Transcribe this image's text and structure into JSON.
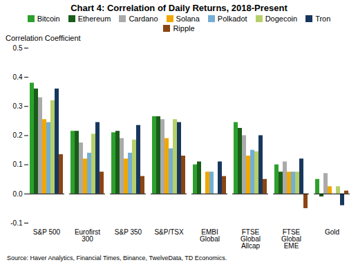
{
  "chart_data": {
    "type": "bar",
    "title": "Chart 4: Correlation of Daily Returns, 2018-Present",
    "ylabel": "Correlation Coefficient",
    "annotations": [
      "Source: Haver Analytics, Financial Times, Binance, TwelveData, TD Economics."
    ],
    "categories": [
      "S&P 500",
      "Eurofirst\n300",
      "S&P 350",
      "S&P/TSX",
      "EMBI\nGlobal",
      "FTSE\nGlobal\nAllcap",
      "FTSE\nGlobal\nEME",
      "Gold"
    ],
    "series": [
      {
        "name": "Bitcoin",
        "color": "#2ca02c",
        "values": [
          0.38,
          0.215,
          0.21,
          0.265,
          0.1,
          0.245,
          0.1,
          0.05
        ]
      },
      {
        "name": "Ethereum",
        "color": "#1a5c1a",
        "values": [
          0.36,
          0.215,
          0.215,
          0.265,
          0.11,
          0.225,
          0.075,
          -0.01
        ]
      },
      {
        "name": "Cardano",
        "color": "#aaaaaa",
        "values": [
          0.33,
          0.175,
          0.19,
          0.255,
          0.0,
          0.2,
          0.11,
          0.07
        ]
      },
      {
        "name": "Solana",
        "color": "#f0a800",
        "values": [
          0.255,
          0.12,
          0.12,
          0.19,
          0.075,
          0.13,
          0.075,
          0.025
        ]
      },
      {
        "name": "Polkadot",
        "color": "#74aed4",
        "values": [
          0.245,
          0.14,
          0.14,
          0.155,
          0.075,
          0.15,
          0.075,
          0.0
        ]
      },
      {
        "name": "Dogecoin",
        "color": "#b5cf6b",
        "values": [
          0.32,
          0.205,
          0.185,
          0.255,
          0.0,
          0.145,
          0.075,
          0.025
        ]
      },
      {
        "name": "Tron",
        "color": "#17375e",
        "values": [
          0.36,
          0.245,
          0.235,
          0.245,
          0.11,
          0.2,
          0.12,
          -0.04
        ]
      },
      {
        "name": "Ripple",
        "color": "#8b4513",
        "values": [
          0.135,
          0.075,
          0.06,
          0.13,
          0.06,
          0.05,
          -0.05,
          0.01
        ]
      }
    ],
    "ylim": [
      -0.1,
      0.5
    ],
    "yticks": [
      -0.1,
      {
        "value": 0.0,
        "label": "0.0"
      },
      0.1,
      0.2,
      0.3,
      0.4,
      0.5
    ],
    "grid": false,
    "legend": "top"
  }
}
